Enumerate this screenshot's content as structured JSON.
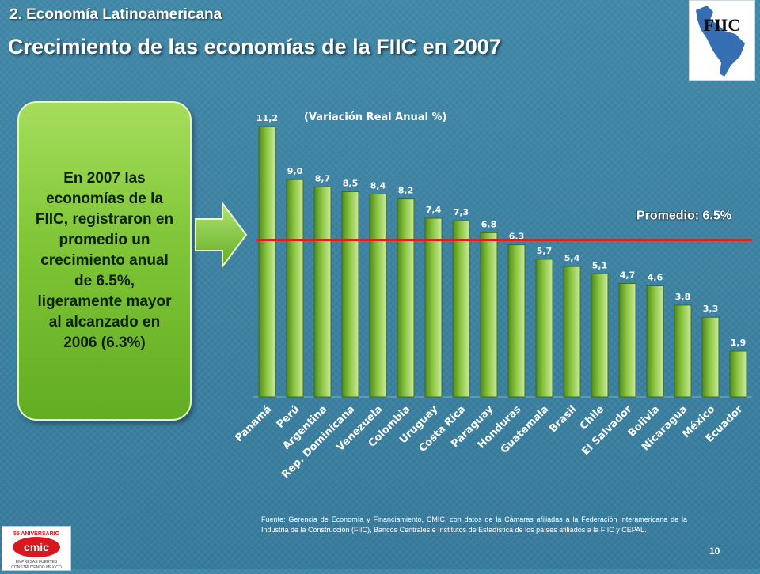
{
  "header": {
    "section": "2. Economía Latinoamericana",
    "title": "Crecimiento de las economías de la FIIC en 2007"
  },
  "callout": {
    "text": "En 2007 las economías de la FIIC, registraron en promedio un crecimiento anual de 6.5%, ligeramente mayor al alcanzado en 2006 (6.3%)"
  },
  "logos": {
    "fiic": "FIIC",
    "cmic": "cmic",
    "cmic_anniversary": "55 ANIVERSARIO",
    "cmic_tagline_1": "EMPRESAS FUERTES",
    "cmic_tagline_2": "CONSTRUYENDO MÉXICO"
  },
  "footer": {
    "source": "Fuente: Gerencia de Economía y Financiamiento, CMIC, con datos de la Cámaras afiliadas a la Federación Interamericana de la Industria de la Construcción (FIIC), Bancos Centrales e Institutos de Estadística de los países afiliados a la FIIC y CEPAL.",
    "page_number": "10"
  },
  "chart_data": {
    "type": "bar",
    "subtitle": "(Variación  Real Anual %)",
    "categories": [
      "Panamá",
      "Perú",
      "Argentina",
      "Rep. Dominicana",
      "Venezuela",
      "Colombia",
      "Uruguay",
      "Costa Rica",
      "Paraguay",
      "Honduras",
      "Guatemala",
      "Brasil",
      "Chile",
      "El Salvador",
      "Bolivia",
      "Nicaragua",
      "México",
      "Ecuador"
    ],
    "values": [
      11.2,
      9.0,
      8.7,
      8.5,
      8.4,
      8.2,
      7.4,
      7.3,
      6.8,
      6.3,
      5.7,
      5.4,
      5.1,
      4.7,
      4.6,
      3.8,
      3.3,
      1.9
    ],
    "value_labels": [
      "11,2",
      "9,0",
      "8,7",
      "8,5",
      "8,4",
      "8,2",
      "7,4",
      "7,3",
      "6.8",
      "6,3",
      "5,7",
      "5,4",
      "5,1",
      "4,7",
      "4,6",
      "3,8",
      "3,3",
      "1,9"
    ],
    "ylim": [
      0,
      11.2
    ],
    "reference_line": {
      "label": "Promedio: 6.5%",
      "value": 6.5,
      "color": "#d9221c"
    },
    "bar_color": "#8bc53f",
    "grid": false,
    "legend": "none"
  }
}
